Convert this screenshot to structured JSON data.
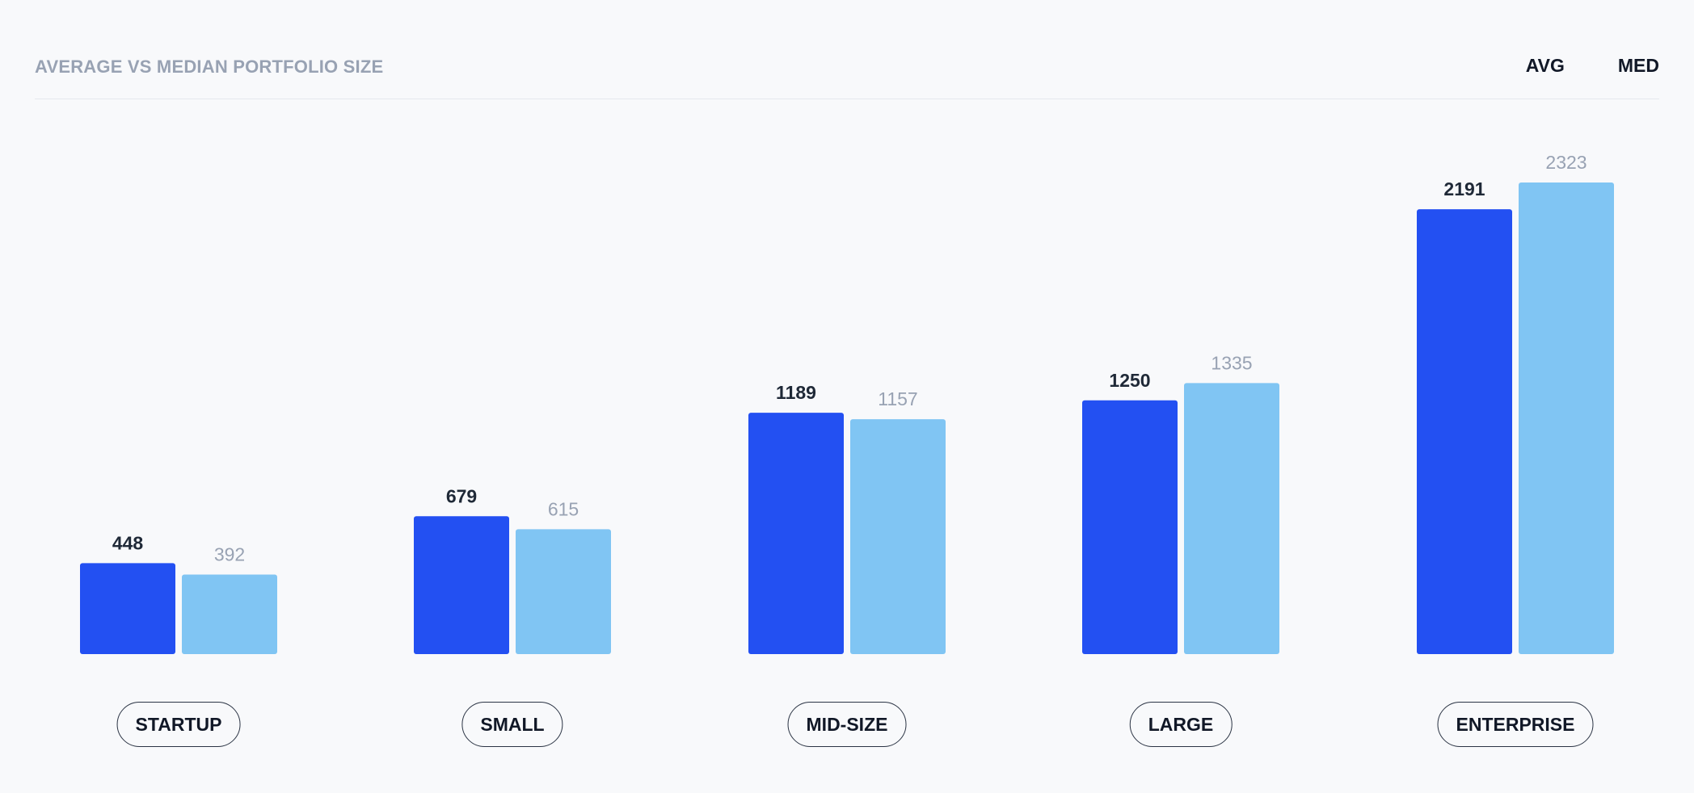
{
  "colors": {
    "avg": "#2350f2",
    "med": "#80c5f3",
    "avg_label": "#1f2937",
    "med_label": "#98a2b3"
  },
  "legend": {
    "avg_label": "AVG",
    "med_label": "MED"
  },
  "chart_data": {
    "type": "bar",
    "title": "AVERAGE VS MEDIAN PORTFOLIO SIZE",
    "categories": [
      "STARTUP",
      "SMALL",
      "MID-SIZE",
      "LARGE",
      "ENTERPRISE"
    ],
    "series": [
      {
        "name": "AVG",
        "values": [
          448,
          679,
          1189,
          1250,
          2191
        ]
      },
      {
        "name": "MED",
        "values": [
          392,
          615,
          1157,
          1335,
          2323
        ]
      }
    ],
    "ylim": [
      0,
      2323
    ],
    "grid": false,
    "legend_position": "top-right"
  }
}
